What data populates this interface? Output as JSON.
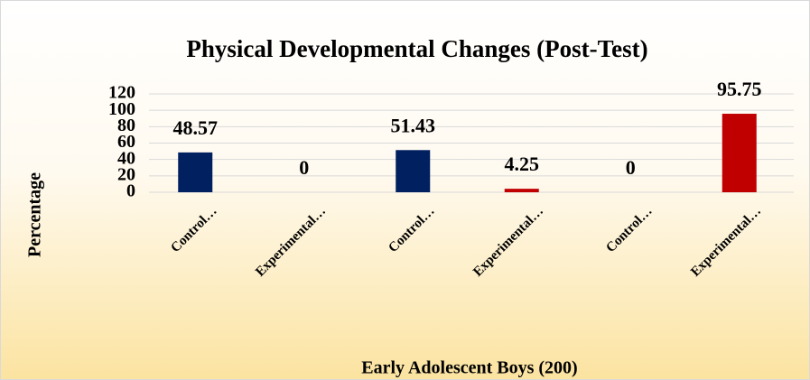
{
  "chart_data": {
    "type": "bar",
    "title": "Physical Developmental Changes (Post-Test)",
    "x_label": "Early Adolescent  Boys (200)",
    "y_label": "Percentage",
    "categories": [
      "Control…",
      "Experimental…",
      "Control…",
      "Experimental…",
      "Control…",
      "Experimental…"
    ],
    "values": [
      48.57,
      0,
      51.43,
      4.25,
      0,
      95.75
    ],
    "colors": [
      "#002060",
      "#c00000",
      "#002060",
      "#c00000",
      "#002060",
      "#c00000"
    ],
    "ylim": [
      0,
      120
    ],
    "yticks": [
      0,
      20,
      40,
      60,
      80,
      100,
      120
    ],
    "grid": true
  }
}
